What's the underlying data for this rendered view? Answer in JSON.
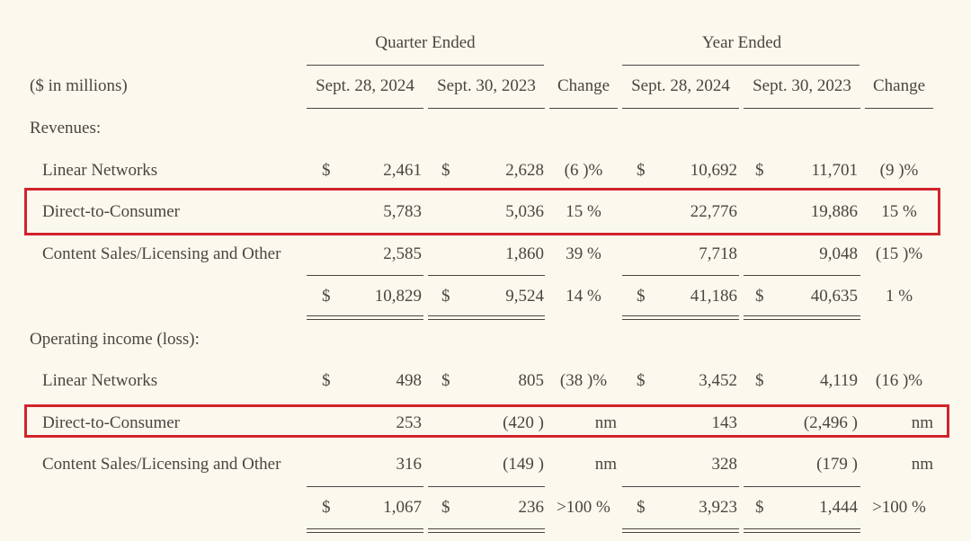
{
  "header": {
    "quarter_ended": "Quarter Ended",
    "year_ended": "Year Ended",
    "units": "($ in millions)",
    "columns": [
      "Sept. 28, 2024",
      "Sept. 30, 2023",
      "Change",
      "Sept. 28, 2024",
      "Sept. 30, 2023",
      "Change"
    ]
  },
  "sections": {
    "revenues": "Revenues:",
    "operating": "Operating income (loss):"
  },
  "rows": [
    {
      "label": "Linear Networks",
      "cs1": "$",
      "q24": "2,461",
      "cs2": "$",
      "q23": "2,628",
      "qchg": "(6 )%",
      "cs3": "$",
      "y24": "10,692",
      "cs4": "$",
      "y23": "11,701",
      "ychg": "(9 )%"
    },
    {
      "label": "Direct-to-Consumer",
      "cs1": "",
      "q24": "5,783",
      "cs2": "",
      "q23": "5,036",
      "qchg": "15 %",
      "cs3": "",
      "y24": "22,776",
      "cs4": "",
      "y23": "19,886",
      "ychg": "15 %"
    },
    {
      "label": "Content Sales/Licensing and Other",
      "cs1": "",
      "q24": "2,585",
      "cs2": "",
      "q23": "1,860",
      "qchg": "39 %",
      "cs3": "",
      "y24": "7,718",
      "cs4": "",
      "y23": "9,048",
      "ychg": "(15 )%"
    },
    {
      "label": "",
      "cs1": "$",
      "q24": "10,829",
      "cs2": "$",
      "q23": "9,524",
      "qchg": "14 %",
      "cs3": "$",
      "y24": "41,186",
      "cs4": "$",
      "y23": "40,635",
      "ychg": "1 %"
    },
    {
      "label": "Linear Networks",
      "cs1": "$",
      "q24": "498",
      "cs2": "$",
      "q23": "805",
      "qchg": "(38 )%",
      "cs3": "$",
      "y24": "3,452",
      "cs4": "$",
      "y23": "4,119",
      "ychg": "(16 )%"
    },
    {
      "label": "Direct-to-Consumer",
      "cs1": "",
      "q24": "253",
      "cs2": "",
      "q23": "(420 )",
      "qchg": "nm",
      "cs3": "",
      "y24": "143",
      "cs4": "",
      "y23": "(2,496 )",
      "ychg": "nm"
    },
    {
      "label": "Content Sales/Licensing and Other",
      "cs1": "",
      "q24": "316",
      "cs2": "",
      "q23": "(149 )",
      "qchg": "nm",
      "cs3": "",
      "y24": "328",
      "cs4": "",
      "y23": "(179 )",
      "ychg": "nm"
    },
    {
      "label": "",
      "cs1": "$",
      "q24": "1,067",
      "cs2": "$",
      "q23": "236",
      "qchg": ">100 %",
      "cs3": "$",
      "y24": "3,923",
      "cs4": "$",
      "y23": "1,444",
      "ychg": ">100 %"
    }
  ],
  "highlight_color": "#d0242c"
}
